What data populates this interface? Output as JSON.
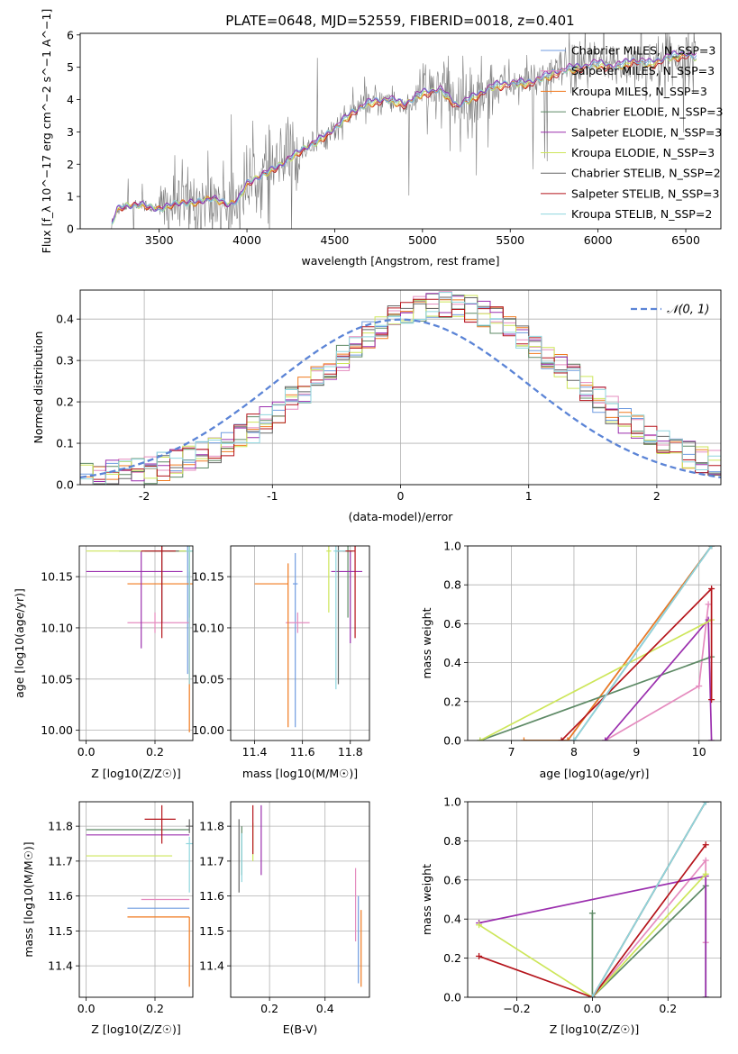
{
  "figure": {
    "title": "PLATE=0648, MJD=52559, FIBERID=0018, z=0.401"
  },
  "colors": {
    "Chabrier MILES": "#6f9be0",
    "Salpeter MILES": "#e58cbf",
    "Kroupa MILES": "#f07a1f",
    "Chabrier ELODIE": "#5e8a66",
    "Salpeter ELODIE": "#9b2fae",
    "Kroupa ELODIE": "#cde65a",
    "Chabrier STELIB": "#666666",
    "Salpeter STELIB": "#b5141b",
    "Kroupa STELIB": "#8fd6de",
    "normal": "#5b84d6"
  },
  "chart_data": [
    {
      "id": "spectrum",
      "type": "line",
      "title": "PLATE=0648, MJD=52559, FIBERID=0018, z=0.401",
      "xlabel": "wavelength [Angstrom, rest frame]",
      "ylabel": "Flux [f_λ 10^−17 erg cm^−2 s^−1 A^−1]",
      "xlim": [
        3050,
        6700
      ],
      "ylim": [
        0,
        6.05
      ],
      "xticks": [
        3500,
        4000,
        4500,
        5000,
        5500,
        6000,
        6500
      ],
      "yticks": [
        0,
        1,
        2,
        3,
        4,
        5,
        6
      ],
      "grid": false,
      "legend_position": "top-right",
      "legend": [
        "Chabrier MILES, N_SSP=3",
        "Salpeter MILES, N_SSP=3",
        "Kroupa MILES, N_SSP=3",
        "Chabrier ELODIE, N_SSP=3",
        "Salpeter ELODIE, N_SSP=3",
        "Kroupa ELODIE, N_SSP=3",
        "Chabrier STELIB, N_SSP=2",
        "Salpeter STELIB, N_SSP=3",
        "Kroupa STELIB, N_SSP=2"
      ],
      "model_continuum": {
        "x": [
          3230,
          3260,
          3300,
          3400,
          3500,
          3600,
          3700,
          3800,
          3900,
          3950,
          4000,
          4100,
          4200,
          4300,
          4400,
          4500,
          4600,
          4700,
          4800,
          4900,
          5000,
          5100,
          5200,
          5300,
          5400,
          5500,
          5600,
          5700,
          5800,
          5900,
          6000,
          6100,
          6200,
          6300,
          6400,
          6500,
          6550
        ],
        "y": [
          0.15,
          0.6,
          0.7,
          0.75,
          0.6,
          0.8,
          0.8,
          0.95,
          0.75,
          0.9,
          1.4,
          1.7,
          2.0,
          2.4,
          2.7,
          3.1,
          3.6,
          3.9,
          4.0,
          3.85,
          4.2,
          4.3,
          3.8,
          4.1,
          4.4,
          4.5,
          4.5,
          4.7,
          4.9,
          5.0,
          5.1,
          5.0,
          5.2,
          5.1,
          5.3,
          5.4,
          5.3
        ]
      }
    },
    {
      "id": "residuals",
      "type": "line",
      "xlabel": "(data-model)/error",
      "ylabel": "Normed distribution",
      "xlim": [
        -2.5,
        2.5
      ],
      "ylim": [
        0,
        0.47
      ],
      "xticks": [
        -2,
        -1,
        0,
        1,
        2
      ],
      "yticks": [
        0.0,
        0.1,
        0.2,
        0.3,
        0.4
      ],
      "grid": true,
      "legend_position": "top-right",
      "legend": [
        "𝒩(0, 1)"
      ],
      "normal_curve": {
        "mu": 0,
        "sigma": 1
      }
    },
    {
      "id": "age-vs-Z",
      "type": "scatter",
      "xlabel": "Z [log10(Z/Z☉)]",
      "ylabel": "age  [log10(age/yr)]",
      "xlim": [
        -0.02,
        0.31
      ],
      "ylim": [
        9.99,
        10.18
      ],
      "xticks": [
        0.0,
        0.2
      ],
      "yticks": [
        10.0,
        10.05,
        10.1,
        10.15
      ],
      "grid": true,
      "points": [
        {
          "model": "Chabrier MILES",
          "x": 0.295,
          "y": 10.175,
          "xerr": [
            0.2,
            0.01
          ],
          "yerr": [
            0.12,
            0.005
          ]
        },
        {
          "model": "Salpeter MILES",
          "x": 0.2,
          "y": 10.105,
          "xerr": [
            0.08,
            0.1
          ],
          "yerr": [
            0.01,
            0.01
          ]
        },
        {
          "model": "Kroupa MILES",
          "x": 0.3,
          "y": 10.143,
          "xerr": [
            0.18,
            0.01
          ],
          "yerr": [
            0.145,
            0.03
          ]
        },
        {
          "model": "Chabrier ELODIE",
          "x": 0.3,
          "y": 10.175,
          "xerr": [
            0.06,
            0.01
          ],
          "yerr": [
            0.065,
            0.005
          ]
        },
        {
          "model": "Salpeter ELODIE",
          "x": 0.16,
          "y": 10.155,
          "xerr": [
            0.16,
            0.12
          ],
          "yerr": [
            0.075,
            0.02
          ]
        },
        {
          "model": "Kroupa ELODIE",
          "x": 0.3,
          "y": 10.175,
          "xerr": [
            0.3,
            0.01
          ],
          "yerr": [
            0.02,
            0.005
          ]
        },
        {
          "model": "Chabrier STELIB",
          "x": 0.22,
          "y": 10.175,
          "xerr": [
            0.05,
            0.05
          ],
          "yerr": [
            0.07,
            0.005
          ]
        },
        {
          "model": "Salpeter STELIB",
          "x": 0.22,
          "y": 10.175,
          "xerr": [
            0.06,
            0.04
          ],
          "yerr": [
            0.085,
            0.005
          ]
        },
        {
          "model": "Kroupa STELIB",
          "x": 0.3,
          "y": 10.175,
          "xerr": [
            0.01,
            0.01
          ],
          "yerr": [
            0.13,
            0.005
          ]
        }
      ]
    },
    {
      "id": "age-vs-mass",
      "type": "scatter",
      "xlabel": "mass [log10(M/M☉)]",
      "ylabel": "",
      "xlim": [
        11.3,
        11.88
      ],
      "ylim": [
        9.99,
        10.18
      ],
      "xticks": [
        11.4,
        11.6,
        11.8
      ],
      "yticks": [
        10.0,
        10.05,
        10.1,
        10.15
      ],
      "grid": true,
      "points": [
        {
          "model": "Chabrier MILES",
          "x": 11.57,
          "y": 10.143,
          "xerr": [
            0.01,
            0.01
          ],
          "yerr": [
            0.14,
            0.03
          ]
        },
        {
          "model": "Salpeter MILES",
          "x": 11.58,
          "y": 10.105,
          "xerr": [
            0.05,
            0.05
          ],
          "yerr": [
            0.01,
            0.01
          ]
        },
        {
          "model": "Kroupa MILES",
          "x": 11.54,
          "y": 10.143,
          "xerr": [
            0.14,
            0.0
          ],
          "yerr": [
            0.14,
            0.02
          ]
        },
        {
          "model": "Chabrier ELODIE",
          "x": 11.79,
          "y": 10.175,
          "xerr": [
            0.02,
            0.02
          ],
          "yerr": [
            0.065,
            0.005
          ]
        },
        {
          "model": "Salpeter ELODIE",
          "x": 11.8,
          "y": 10.155,
          "xerr": [
            0.08,
            0.05
          ],
          "yerr": [
            0.07,
            0.02
          ]
        },
        {
          "model": "Kroupa ELODIE",
          "x": 11.71,
          "y": 10.175,
          "xerr": [
            0.01,
            0.01
          ],
          "yerr": [
            0.06,
            0.005
          ]
        },
        {
          "model": "Chabrier STELIB",
          "x": 11.75,
          "y": 10.175,
          "xerr": [
            0.01,
            0.01
          ],
          "yerr": [
            0.13,
            0.005
          ]
        },
        {
          "model": "Salpeter STELIB",
          "x": 11.82,
          "y": 10.175,
          "xerr": [
            0.06,
            0.0
          ],
          "yerr": [
            0.085,
            0.005
          ]
        },
        {
          "model": "Kroupa STELIB",
          "x": 11.74,
          "y": 10.175,
          "xerr": [
            0.01,
            0.04
          ],
          "yerr": [
            0.135,
            0.005
          ]
        }
      ]
    },
    {
      "id": "weight-vs-age",
      "type": "line",
      "xlabel": "age  [log10(age/yr)]",
      "ylabel": "mass weight",
      "xlim": [
        6.3,
        10.35
      ],
      "ylim": [
        0,
        1
      ],
      "xticks": [
        7,
        8,
        9,
        10
      ],
      "yticks": [
        0.0,
        0.2,
        0.4,
        0.6,
        0.8,
        1.0
      ],
      "grid": true,
      "series": [
        {
          "model": "Chabrier MILES",
          "x": [
            7.9,
            10.2
          ],
          "y": [
            0.0,
            1.0
          ]
        },
        {
          "model": "Salpeter MILES",
          "x": [
            8.5,
            10.0,
            10.15
          ],
          "y": [
            0.0,
            0.28,
            0.7
          ]
        },
        {
          "model": "Kroupa MILES",
          "x": [
            7.2,
            7.9,
            10.2
          ],
          "y": [
            0.0,
            0.0,
            1.0
          ]
        },
        {
          "model": "Chabrier ELODIE",
          "x": [
            6.5,
            10.2
          ],
          "y": [
            0.0,
            0.43
          ]
        },
        {
          "model": "Salpeter ELODIE",
          "x": [
            8.5,
            10.15,
            10.2
          ],
          "y": [
            0.0,
            0.62,
            0.0
          ]
        },
        {
          "model": "Kroupa ELODIE",
          "x": [
            6.5,
            10.2
          ],
          "y": [
            0.0,
            0.62
          ]
        },
        {
          "model": "Chabrier STELIB",
          "x": [
            8.0,
            10.2
          ],
          "y": [
            0.0,
            1.0
          ]
        },
        {
          "model": "Salpeter STELIB",
          "x": [
            7.8,
            10.2,
            10.2
          ],
          "y": [
            0.0,
            0.78,
            0.21
          ]
        },
        {
          "model": "Kroupa STELIB",
          "x": [
            8.0,
            10.2
          ],
          "y": [
            0.0,
            1.0
          ]
        }
      ]
    },
    {
      "id": "mass-vs-Z",
      "type": "scatter",
      "xlabel": "Z [log10(Z/Z☉)]",
      "ylabel": "mass [log10(M/M☉)]",
      "xlim": [
        -0.02,
        0.31
      ],
      "ylim": [
        11.31,
        11.87
      ],
      "xticks": [
        0.0,
        0.2
      ],
      "yticks": [
        11.4,
        11.5,
        11.6,
        11.7,
        11.8
      ],
      "grid": true,
      "points": [
        {
          "model": "Chabrier MILES",
          "x": 0.3,
          "y": 11.565,
          "xerr": [
            0.18,
            0.0
          ],
          "yerr": [
            0.0,
            0.0
          ]
        },
        {
          "model": "Salpeter MILES",
          "x": 0.3,
          "y": 11.59,
          "xerr": [
            0.14,
            0.0
          ],
          "yerr": [
            0.0,
            0.0
          ]
        },
        {
          "model": "Kroupa MILES",
          "x": 0.3,
          "y": 11.54,
          "xerr": [
            0.18,
            0.0
          ],
          "yerr": [
            0.2,
            0.0
          ]
        },
        {
          "model": "Chabrier ELODIE",
          "x": 0.3,
          "y": 11.79,
          "xerr": [
            0.3,
            0.0
          ],
          "yerr": [
            0.0,
            0.0
          ]
        },
        {
          "model": "Salpeter ELODIE",
          "x": 0.3,
          "y": 11.775,
          "xerr": [
            0.3,
            0.0
          ],
          "yerr": [
            0.0,
            0.0
          ]
        },
        {
          "model": "Kroupa ELODIE",
          "x": 0.25,
          "y": 11.715,
          "xerr": [
            0.25,
            0.0
          ],
          "yerr": [
            0.0,
            0.0
          ]
        },
        {
          "model": "Chabrier STELIB",
          "x": 0.3,
          "y": 11.8,
          "xerr": [
            0.01,
            0.01
          ],
          "yerr": [
            0.02,
            0.02
          ]
        },
        {
          "model": "Salpeter STELIB",
          "x": 0.22,
          "y": 11.82,
          "xerr": [
            0.05,
            0.04
          ],
          "yerr": [
            0.07,
            0.04
          ]
        },
        {
          "model": "Kroupa STELIB",
          "x": 0.3,
          "y": 11.75,
          "xerr": [
            0.01,
            0.01
          ],
          "yerr": [
            0.14,
            0.02
          ]
        }
      ]
    },
    {
      "id": "mass-vs-EBV",
      "type": "scatter",
      "xlabel": "E(B-V)",
      "ylabel": "",
      "xlim": [
        0.06,
        0.56
      ],
      "ylim": [
        11.31,
        11.87
      ],
      "xticks": [
        0.2,
        0.4
      ],
      "yticks": [
        11.4,
        11.5,
        11.6,
        11.7,
        11.8
      ],
      "grid": true,
      "points": [
        {
          "model": "Chabrier MILES",
          "x": 0.52,
          "y": 11.5,
          "xerr": [
            0.0,
            0.0
          ],
          "yerr": [
            0.15,
            0.1
          ]
        },
        {
          "model": "Salpeter MILES",
          "x": 0.51,
          "y": 11.6,
          "xerr": [
            0.0,
            0.0
          ],
          "yerr": [
            0.13,
            0.08
          ]
        },
        {
          "model": "Kroupa MILES",
          "x": 0.53,
          "y": 11.45,
          "xerr": [
            0.0,
            0.0
          ],
          "yerr": [
            0.11,
            0.11
          ]
        },
        {
          "model": "Chabrier ELODIE",
          "x": 0.1,
          "y": 11.76,
          "xerr": [
            0.0,
            0.0
          ],
          "yerr": [
            0.1,
            0.04
          ]
        },
        {
          "model": "Salpeter ELODIE",
          "x": 0.17,
          "y": 11.77,
          "xerr": [
            0.0,
            0.0
          ],
          "yerr": [
            0.11,
            0.09
          ]
        },
        {
          "model": "Kroupa ELODIE",
          "x": 0.14,
          "y": 11.75,
          "xerr": [
            0.0,
            0.0
          ],
          "yerr": [
            0.05,
            0.06
          ]
        },
        {
          "model": "Chabrier STELIB",
          "x": 0.09,
          "y": 11.76,
          "xerr": [
            0.0,
            0.0
          ],
          "yerr": [
            0.15,
            0.06
          ]
        },
        {
          "model": "Salpeter STELIB",
          "x": 0.14,
          "y": 11.8,
          "xerr": [
            0.0,
            0.0
          ],
          "yerr": [
            0.08,
            0.06
          ]
        },
        {
          "model": "Kroupa STELIB",
          "x": 0.1,
          "y": 11.74,
          "xerr": [
            0.0,
            0.0
          ],
          "yerr": [
            0.1,
            0.04
          ]
        }
      ]
    },
    {
      "id": "weight-vs-Z",
      "type": "line",
      "xlabel": "Z [log10(Z/Z☉)]",
      "ylabel": "mass weight",
      "xlim": [
        -0.33,
        0.34
      ],
      "ylim": [
        0,
        1
      ],
      "xticks": [
        -0.2,
        0.0,
        0.2
      ],
      "yticks": [
        0.0,
        0.2,
        0.4,
        0.6,
        0.8,
        1.0
      ],
      "grid": true,
      "series": [
        {
          "model": "Chabrier MILES",
          "x": [
            0.0,
            0.3
          ],
          "y": [
            0.0,
            1.0
          ]
        },
        {
          "model": "Salpeter MILES",
          "x": [
            0.0,
            0.3,
            0.3
          ],
          "y": [
            0.0,
            0.7,
            0.28
          ]
        },
        {
          "model": "Kroupa MILES",
          "x": [
            0.0,
            0.3
          ],
          "y": [
            0.0,
            1.0
          ]
        },
        {
          "model": "Chabrier ELODIE",
          "x": [
            0.0,
            0.0,
            0.0,
            0.3,
            0.3
          ],
          "y": [
            0.43,
            0.0,
            0.0,
            0.57,
            0.0
          ]
        },
        {
          "model": "Salpeter ELODIE",
          "x": [
            -0.3,
            0.3,
            0.3
          ],
          "y": [
            0.38,
            0.62,
            0.0
          ]
        },
        {
          "model": "Kroupa ELODIE",
          "x": [
            -0.3,
            0.0,
            0.3
          ],
          "y": [
            0.37,
            0.0,
            0.63
          ]
        },
        {
          "model": "Chabrier STELIB",
          "x": [
            0.0,
            0.3
          ],
          "y": [
            0.0,
            1.0
          ]
        },
        {
          "model": "Salpeter STELIB",
          "x": [
            -0.3,
            0.0,
            0.3
          ],
          "y": [
            0.21,
            0.0,
            0.78
          ]
        },
        {
          "model": "Kroupa STELIB",
          "x": [
            0.0,
            0.3
          ],
          "y": [
            0.0,
            1.0
          ]
        }
      ]
    }
  ]
}
